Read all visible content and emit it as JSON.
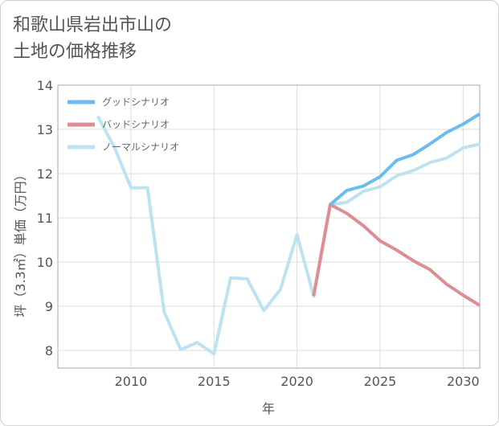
{
  "title": "和歌山県岩出市山の\n土地の価格推移",
  "chart_data": {
    "type": "line",
    "title": "和歌山県岩出市山の土地の価格推移",
    "xlabel": "年",
    "ylabel": "坪（3.3㎡）単価（万円）",
    "xlim": [
      2005.6,
      2031
    ],
    "ylim": [
      7.6,
      14
    ],
    "xticks": [
      2010,
      2015,
      2020,
      2025,
      2030
    ],
    "yticks": [
      8,
      9,
      10,
      11,
      12,
      13,
      14
    ],
    "grid": true,
    "legend_position": "top-left",
    "series": [
      {
        "name": "グッドシナリオ",
        "color": "#6bbcee",
        "x": [
          2022,
          2023,
          2024,
          2025,
          2026,
          2027,
          2028,
          2029,
          2030,
          2031
        ],
        "values": [
          11.3,
          11.62,
          11.72,
          11.93,
          12.3,
          12.43,
          12.67,
          12.93,
          13.12,
          13.35
        ]
      },
      {
        "name": "バッドシナリオ",
        "color": "#dd8d94",
        "x": [
          2021,
          2022,
          2023,
          2024,
          2025,
          2026,
          2027,
          2028,
          2029,
          2030,
          2031
        ],
        "values": [
          9.23,
          11.3,
          11.1,
          10.82,
          10.48,
          10.27,
          10.03,
          9.83,
          9.5,
          9.25,
          9.02
        ]
      },
      {
        "name": "ノーマルシナリオ",
        "color": "#bde2f2",
        "x": [
          2008,
          2009,
          2010,
          2011,
          2012,
          2013,
          2014,
          2015,
          2016,
          2017,
          2018,
          2019,
          2020,
          2021,
          2022,
          2023,
          2024,
          2025,
          2026,
          2027,
          2028,
          2029,
          2030,
          2031
        ],
        "values": [
          13.3,
          12.6,
          11.68,
          11.68,
          8.87,
          8.02,
          8.18,
          7.92,
          9.64,
          9.62,
          8.9,
          9.38,
          10.62,
          9.23,
          11.3,
          11.35,
          11.6,
          11.7,
          11.95,
          12.07,
          12.25,
          12.35,
          12.58,
          12.67
        ]
      }
    ]
  }
}
